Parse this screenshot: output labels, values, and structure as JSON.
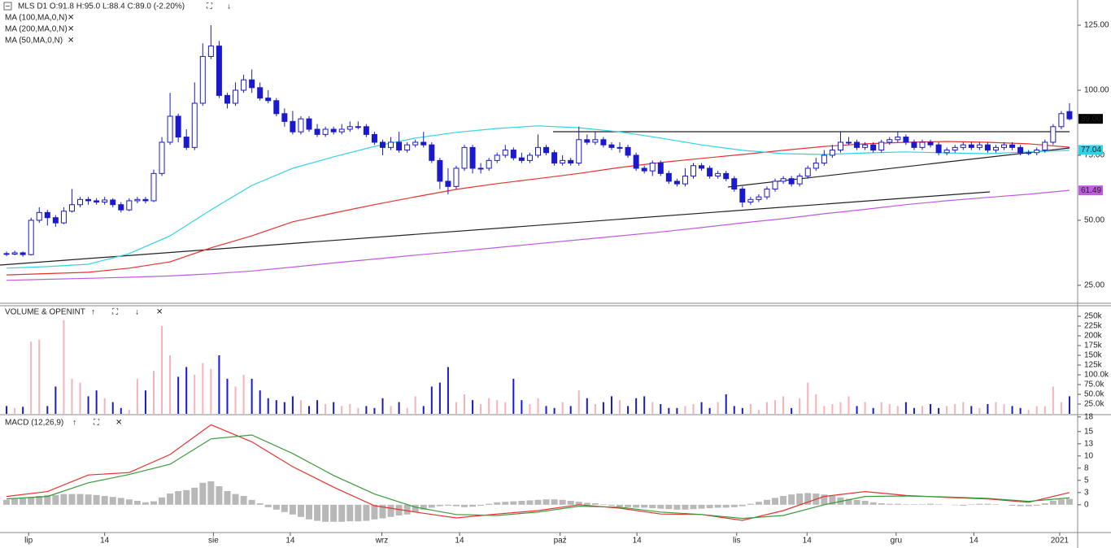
{
  "chart_data": [
    {
      "type": "candlestick",
      "title": "MLS  D1  O:91.8  H:95.0  L:88.4  C:89.0  (-2.20%)",
      "xlim": [
        -0.8,
        131
      ],
      "ylim": [
        18.4,
        134.7
      ],
      "yticks": [
        {
          "value": 125,
          "label": "125.00"
        },
        {
          "value": 100,
          "label": "100.00"
        },
        {
          "value": 75,
          "label": "75.00"
        },
        {
          "value": 50,
          "label": "50.00"
        },
        {
          "value": 25,
          "label": "25.00"
        }
      ],
      "up_color": "#ffffff",
      "down_color": "#1a1acc",
      "open": [
        37.2,
        37,
        37.5,
        36.8,
        50,
        53,
        51,
        49,
        53.5,
        56,
        58,
        57.5,
        57,
        57.8,
        56,
        54,
        57.5,
        58,
        57.5,
        68,
        80,
        90,
        82,
        78,
        95,
        113,
        117,
        98,
        95,
        100,
        104,
        101,
        97,
        96,
        91,
        88,
        84,
        89,
        85,
        83,
        85,
        84,
        85,
        86,
        86,
        83,
        80,
        78,
        80,
        77,
        79,
        80,
        79,
        73,
        65,
        63,
        70,
        78,
        70,
        70,
        73,
        75,
        77,
        74,
        73,
        75,
        78,
        76,
        72,
        73,
        72,
        81,
        80,
        81,
        79,
        78,
        78,
        75,
        70,
        69,
        72,
        68,
        65,
        64,
        67,
        71,
        70,
        67,
        68,
        66,
        62,
        57,
        58,
        59,
        62,
        65,
        66,
        64,
        67,
        70,
        72,
        75,
        77,
        80,
        80,
        78,
        79,
        77,
        80,
        81,
        82,
        80,
        78,
        80,
        79,
        76,
        77,
        78,
        79,
        78,
        79,
        77,
        78,
        79,
        78,
        76,
        76,
        77,
        80,
        86,
        91.8
      ],
      "high": [
        38,
        38.3,
        38,
        51,
        55,
        54,
        52,
        55,
        62,
        59,
        59,
        58.5,
        59,
        58.5,
        57,
        58.5,
        59,
        59,
        69.5,
        82,
        99,
        91,
        85,
        103,
        118,
        125,
        119,
        99,
        103,
        106,
        108,
        103,
        100,
        97,
        93,
        92,
        90,
        90,
        87,
        86,
        86,
        87,
        88,
        88,
        87,
        84,
        81,
        82,
        84,
        80,
        81,
        84,
        80,
        74,
        70,
        71,
        79,
        79,
        72,
        74,
        76,
        79,
        78,
        76,
        76,
        83,
        79,
        77,
        75,
        74,
        86,
        83,
        84,
        82,
        80,
        80,
        79,
        76,
        71,
        73,
        73,
        69,
        66,
        70,
        72,
        72,
        71,
        69,
        69,
        67,
        63,
        59,
        60,
        63,
        66,
        67,
        67,
        68,
        71,
        74,
        77,
        79,
        84,
        82,
        81,
        80,
        80,
        81,
        82,
        84,
        83,
        81,
        81,
        81,
        80,
        78,
        79,
        80,
        80,
        80,
        80,
        79,
        80,
        80,
        79,
        77,
        78,
        81,
        87,
        92,
        95
      ],
      "low": [
        36.2,
        36.5,
        36,
        36.5,
        49,
        48,
        47.5,
        48.5,
        53,
        55,
        56,
        56,
        56,
        55,
        53,
        53.5,
        56.5,
        56.5,
        57,
        67,
        79,
        80,
        77,
        77,
        94,
        112,
        97,
        93,
        94,
        99,
        99,
        96,
        95,
        90,
        86,
        83,
        83,
        84,
        82,
        82,
        83,
        83,
        84,
        85,
        82,
        79,
        75,
        77,
        76,
        76,
        78,
        78,
        72,
        62,
        60,
        62,
        69,
        68,
        68,
        69,
        72,
        74,
        73,
        72,
        72,
        74,
        75,
        71,
        71,
        71,
        71,
        79,
        79,
        78,
        77,
        76,
        74,
        69,
        68,
        67,
        67,
        64,
        63,
        63,
        66,
        69,
        66,
        66,
        65,
        61,
        55,
        56,
        57,
        58,
        61,
        64,
        63,
        63,
        66,
        69,
        71,
        74,
        76,
        79,
        77,
        77,
        76,
        76,
        79,
        80,
        79,
        77,
        77,
        78,
        75,
        75,
        76,
        77,
        77,
        77,
        76,
        76,
        77,
        77,
        75,
        75,
        75,
        76,
        79,
        85,
        88.4
      ],
      "close": [
        37,
        37.5,
        36.8,
        50,
        53,
        51,
        49,
        53.5,
        56,
        58,
        57.5,
        57,
        57.8,
        56,
        54,
        57.5,
        58,
        57.5,
        68,
        80,
        90,
        82,
        78,
        95,
        113,
        117,
        98,
        95,
        100,
        104,
        101,
        97,
        96,
        91,
        88,
        84,
        89,
        85,
        83,
        85,
        84,
        85,
        86,
        86,
        83,
        80,
        78,
        80,
        77,
        79,
        80,
        79,
        73,
        65,
        63,
        70,
        78,
        70,
        70,
        73,
        75,
        77,
        74,
        73,
        75,
        78,
        76,
        72,
        73,
        72,
        81,
        80,
        81,
        79,
        78,
        78,
        75,
        70,
        69,
        72,
        68,
        65,
        64,
        67,
        71,
        70,
        67,
        68,
        66,
        62,
        57,
        58,
        59,
        62,
        65,
        66,
        64,
        67,
        70,
        72,
        75,
        77,
        80,
        80,
        78,
        79,
        77,
        80,
        81,
        82,
        80,
        78,
        80,
        79,
        76,
        77,
        78,
        79,
        78,
        79,
        77,
        78,
        79,
        78,
        76,
        76,
        77,
        80,
        86,
        91,
        89
      ],
      "series": [
        {
          "name": "MA (100,MA,0,N)",
          "color": "#e8312f",
          "x": [
            0,
            5,
            10,
            15,
            20,
            25,
            30,
            35,
            40,
            45,
            50,
            55,
            60,
            65,
            70,
            75,
            80,
            85,
            90,
            95,
            100,
            105,
            110,
            115,
            120,
            125,
            130
          ],
          "values": [
            29,
            29.5,
            30,
            31.6,
            34,
            39.4,
            44,
            49.4,
            52.8,
            56,
            59,
            61.9,
            64.1,
            66,
            68,
            70.3,
            72.2,
            73.8,
            75.3,
            76.9,
            78.4,
            79.4,
            80,
            80.3,
            80,
            79.4,
            78.1
          ]
        },
        {
          "name": "MA (200,MA,0,N)",
          "color": "#c05be0",
          "x": [
            0,
            5,
            10,
            15,
            20,
            25,
            30,
            35,
            40,
            45,
            50,
            55,
            60,
            65,
            70,
            75,
            80,
            85,
            90,
            95,
            100,
            105,
            110,
            115,
            120,
            125,
            130
          ],
          "values": [
            26.9,
            27.3,
            27.7,
            28.1,
            28.6,
            29.4,
            30.5,
            32,
            33.6,
            35.1,
            36.6,
            38,
            39.5,
            41,
            42.5,
            44,
            45.5,
            47.2,
            49,
            50.6,
            52.5,
            54.2,
            56,
            57.5,
            58.8,
            60,
            61.5
          ]
        },
        {
          "name": "MA (50,MA,0,N)",
          "color": "#2fd3e6",
          "x": [
            0,
            5,
            10,
            15,
            20,
            25,
            30,
            35,
            40,
            45,
            50,
            55,
            60,
            65,
            70,
            75,
            80,
            85,
            90,
            95,
            100,
            105,
            110,
            115,
            120,
            125,
            130
          ],
          "values": [
            31.6,
            32.2,
            33.1,
            37.2,
            44,
            54,
            63.4,
            70,
            74.4,
            78.4,
            81.6,
            83.8,
            85.3,
            86.3,
            85.6,
            84,
            81.6,
            79,
            76.9,
            75.6,
            75.3,
            75.9,
            76.3,
            75.9,
            75.6,
            76.3,
            76.9
          ]
        }
      ],
      "price_tags": [
        {
          "value": 89,
          "label": "89.00",
          "color": "#000000"
        },
        {
          "value": 77.04,
          "label": "77.04",
          "color": "#2fd3e6"
        },
        {
          "value": 61.49,
          "label": "61.49",
          "color": "#c05be0"
        }
      ]
    },
    {
      "type": "bar",
      "title": "VOLUME & OPENINT",
      "xlim": [
        -0.8,
        131
      ],
      "ylim": [
        0,
        273000
      ],
      "yticks": [
        {
          "value": 25000,
          "label": "25.0k"
        },
        {
          "value": 50000,
          "label": "50.0k"
        },
        {
          "value": 75000,
          "label": "75.0k"
        },
        {
          "value": 100000,
          "label": "100.0k"
        },
        {
          "value": 125000,
          "label": "125k"
        },
        {
          "value": 150000,
          "label": "150k"
        },
        {
          "value": 175000,
          "label": "175k"
        },
        {
          "value": 200000,
          "label": "200k"
        },
        {
          "value": 225000,
          "label": "225k"
        },
        {
          "value": 250000,
          "label": "250k"
        }
      ],
      "up_color": "#f4b3b8",
      "down_color": "#1a1acc",
      "values": [
        20000,
        15000,
        18000,
        185000,
        190000,
        20000,
        70000,
        240000,
        90000,
        80000,
        45000,
        60000,
        40000,
        30000,
        15000,
        10000,
        90000,
        60000,
        110000,
        225000,
        150000,
        95000,
        120000,
        100000,
        130000,
        115000,
        150000,
        90000,
        70000,
        100000,
        90000,
        60000,
        40000,
        35000,
        30000,
        45000,
        35000,
        20000,
        35000,
        25000,
        30000,
        20000,
        25000,
        15000,
        20000,
        15000,
        40000,
        20000,
        30000,
        15000,
        45000,
        20000,
        70000,
        80000,
        120000,
        30000,
        50000,
        35000,
        25000,
        40000,
        35000,
        30000,
        90000,
        35000,
        25000,
        40000,
        20000,
        15000,
        30000,
        20000,
        60000,
        40000,
        25000,
        30000,
        45000,
        35000,
        20000,
        40000,
        45000,
        30000,
        25000,
        15000,
        15000,
        20000,
        25000,
        30000,
        15000,
        30000,
        50000,
        20000,
        15000,
        25000,
        10000,
        30000,
        35000,
        45000,
        15000,
        40000,
        80000,
        50000,
        20000,
        25000,
        30000,
        45000,
        20000,
        30000,
        15000,
        30000,
        25000,
        20000,
        30000,
        15000,
        20000,
        25000,
        15000,
        20000,
        25000,
        30000,
        20000,
        15000,
        25000,
        30000,
        25000,
        20000,
        15000,
        10000,
        20000,
        20000,
        70000,
        30000,
        45000
      ]
    },
    {
      "type": "macd",
      "title": "MACD (12,26,9)",
      "xlim": [
        -0.8,
        131
      ],
      "ylim": [
        -5.7,
        18.3
      ],
      "yticks": [
        {
          "value": 18,
          "label": "18"
        },
        {
          "value": 15,
          "label": "15"
        },
        {
          "value": 12.5,
          "label": "13"
        },
        {
          "value": 10,
          "label": "10"
        },
        {
          "value": 7.5,
          "label": "8"
        },
        {
          "value": 5,
          "label": "5"
        },
        {
          "value": 2.5,
          "label": "3"
        },
        {
          "value": 0,
          "label": "0"
        }
      ],
      "xticks": [
        {
          "value": 2.7,
          "label": "lip"
        },
        {
          "value": 12,
          "label": "14"
        },
        {
          "value": 25.3,
          "label": "sie"
        },
        {
          "value": 34.7,
          "label": "14"
        },
        {
          "value": 45.9,
          "label": "wrz"
        },
        {
          "value": 55.4,
          "label": "14"
        },
        {
          "value": 67.7,
          "label": "paź"
        },
        {
          "value": 77.1,
          "label": "14"
        },
        {
          "value": 89.3,
          "label": "lis"
        },
        {
          "value": 97.9,
          "label": "14"
        },
        {
          "value": 108.8,
          "label": "gru"
        },
        {
          "value": 118.3,
          "label": "14"
        },
        {
          "value": 128.8,
          "label": "2021"
        }
      ],
      "histogram_color": "#b8b8b8",
      "histogram": [
        1,
        1.2,
        1.3,
        1.6,
        1.8,
        2,
        2,
        2.2,
        2.2,
        2.2,
        2.1,
        2,
        1.8,
        1.6,
        1.4,
        1.1,
        0.8,
        0.5,
        0.7,
        1.5,
        2.3,
        2.8,
        3,
        3.5,
        4.5,
        4.8,
        3.8,
        2.8,
        2.2,
        1.8,
        1,
        0.3,
        -0.5,
        -1,
        -1.5,
        -2,
        -2.5,
        -3,
        -3.3,
        -3.5,
        -3.5,
        -3.5,
        -3.4,
        -3.4,
        -3.3,
        -3,
        -2.8,
        -2.5,
        -2.2,
        -2,
        -1.5,
        -1,
        -0.6,
        -0.3,
        -0.2,
        -0.3,
        -0.5,
        -0.4,
        -0.2,
        0.2,
        0.5,
        0.6,
        0.7,
        0.8,
        0.9,
        1,
        1.1,
        1.1,
        1,
        0.8,
        0.6,
        0.4,
        0.3,
        0.1,
        -0.2,
        -0.4,
        -0.5,
        -0.6,
        -0.6,
        -0.7,
        -0.8,
        -0.9,
        -1,
        -1,
        -0.9,
        -0.8,
        -0.7,
        -0.6,
        -0.6,
        -0.5,
        -0.3,
        0.2,
        0.6,
        1,
        1.4,
        1.8,
        2.1,
        2.3,
        2.4,
        2.3,
        2.1,
        1.8,
        1.5,
        1.2,
        1,
        0.8,
        0.5,
        0.3,
        0.2,
        0.2,
        0.1,
        0.1,
        0.1,
        0.2,
        0.1,
        0,
        -0.1,
        -0.2,
        0.1,
        0.2,
        0.2,
        0.1,
        0,
        -0.2,
        -0.3,
        -0.3,
        -0.2,
        0.3,
        0.8,
        1.1,
        1.2
      ],
      "series": [
        {
          "color": "#e8312f",
          "x": [
            0,
            5,
            10,
            15,
            20,
            25,
            30,
            35,
            40,
            45,
            50,
            55,
            60,
            65,
            70,
            75,
            80,
            85,
            90,
            95,
            100,
            105,
            110,
            115,
            120,
            125,
            130
          ],
          "values": [
            1.7,
            2.7,
            6.1,
            6.6,
            10.3,
            16.4,
            12.9,
            7.8,
            3.6,
            -0.2,
            -1.5,
            -2.7,
            -1.9,
            -1.2,
            0,
            -0.7,
            -1.9,
            -2,
            -3.2,
            -1.2,
            1.7,
            2.7,
            1.9,
            1.5,
            1.2,
            0.5,
            2.5
          ]
        },
        {
          "color": "#3a9a3a",
          "x": [
            0,
            5,
            10,
            15,
            20,
            25,
            30,
            35,
            40,
            45,
            50,
            55,
            60,
            65,
            70,
            75,
            80,
            85,
            90,
            95,
            100,
            105,
            110,
            115,
            120,
            125,
            130
          ],
          "values": [
            1.2,
            1.7,
            4.5,
            6.2,
            8.3,
            13.5,
            14.3,
            10.5,
            6,
            2.2,
            -0.5,
            -2,
            -2.2,
            -1.5,
            -0.3,
            -0.5,
            -1.5,
            -2,
            -2.8,
            -2.2,
            0,
            1.7,
            1.8,
            1.6,
            1.3,
            0.7,
            1.4
          ]
        }
      ]
    }
  ]
}
